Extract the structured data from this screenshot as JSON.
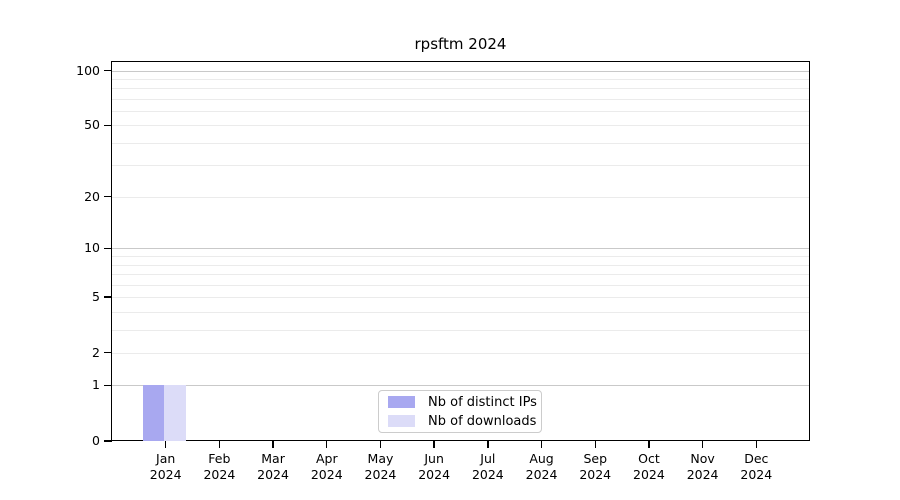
{
  "chart_data": {
    "type": "bar",
    "title": "rpsftm 2024",
    "categories": [
      "Jan",
      "Feb",
      "Mar",
      "Apr",
      "May",
      "Jun",
      "Jul",
      "Aug",
      "Sep",
      "Oct",
      "Nov",
      "Dec"
    ],
    "category_year": "2024",
    "series": [
      {
        "name": "Nb of distinct IPs",
        "color": "#a8a8f0",
        "values": [
          1,
          0,
          0,
          0,
          0,
          0,
          0,
          0,
          0,
          0,
          0,
          0
        ]
      },
      {
        "name": "Nb of downloads",
        "color": "#dcdcf8",
        "values": [
          1,
          0,
          0,
          0,
          0,
          0,
          0,
          0,
          0,
          0,
          0,
          0
        ]
      }
    ],
    "yscale": "log1p",
    "ylim": [
      0,
      112
    ],
    "yticks": [
      100,
      50,
      20,
      10,
      5,
      2,
      1,
      0
    ],
    "major_gridlines": [
      1,
      10,
      100
    ],
    "minor_gridlines": [
      2,
      3,
      4,
      5,
      6,
      7,
      8,
      9,
      20,
      30,
      40,
      50,
      60,
      70,
      80,
      90
    ],
    "grid": true,
    "xlabel": "",
    "ylabel": "",
    "legend": {
      "position": "bottom-center",
      "entries": [
        "Nb of distinct IPs",
        "Nb of downloads"
      ]
    }
  },
  "colors": {
    "background": "#ffffff",
    "axis": "#000000",
    "major_grid": "#c9c9c9",
    "minor_grid": "#ebebeb",
    "legend_border": "#cccccc"
  }
}
